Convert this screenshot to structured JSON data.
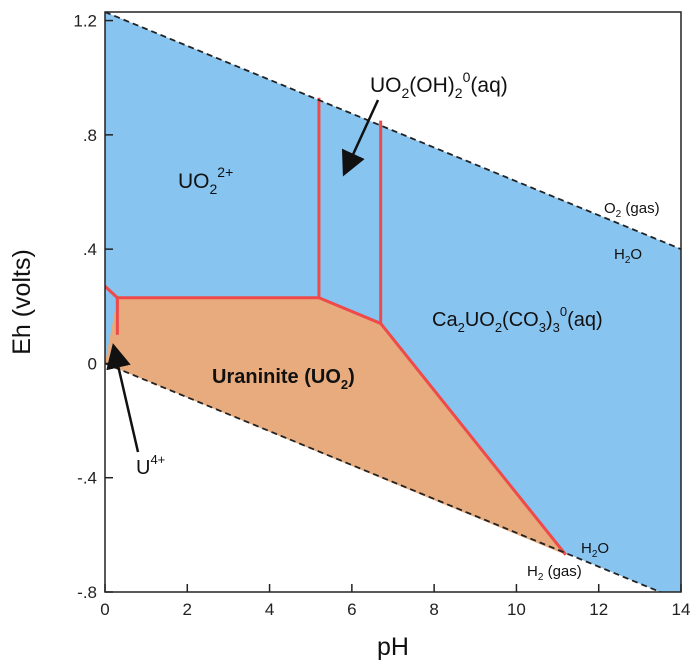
{
  "chart_data": {
    "type": "area",
    "title": "",
    "xlabel": "pH",
    "ylabel": "Eh (volts)",
    "xlim": [
      0,
      14
    ],
    "ylim": [
      -0.8,
      1.23
    ],
    "x_ticks": [
      "0",
      "2",
      "4",
      "6",
      "8",
      "10",
      "12",
      "14"
    ],
    "y_ticks": [
      {
        "value": 1.2,
        "label": "1.2"
      },
      {
        "value": 0.8,
        "label": ".8"
      },
      {
        "value": 0.4,
        "label": ".4"
      },
      {
        "value": 0,
        "label": "0"
      },
      {
        "value": -0.4,
        "label": "-.4"
      },
      {
        "value": -0.8,
        "label": "-.8"
      }
    ],
    "water_upper_line": {
      "x": [
        0,
        14
      ],
      "y": [
        1.23,
        0.4
      ]
    },
    "water_lower_line": {
      "x": [
        0,
        14
      ],
      "y": [
        0.0,
        -0.83
      ]
    },
    "boundaries": [
      {
        "x": [
          0,
          0.3
        ],
        "y": [
          0.27,
          0.23
        ]
      },
      {
        "x": [
          0.3,
          5.2
        ],
        "y": [
          0.23,
          0.23
        ]
      },
      {
        "x": [
          0.3,
          0.3
        ],
        "y": [
          0.23,
          0.1
        ]
      },
      {
        "x": [
          5.2,
          6.7
        ],
        "y": [
          0.23,
          0.14
        ]
      },
      {
        "x": [
          6.7,
          11.2
        ],
        "y": [
          0.14,
          -0.67
        ]
      },
      {
        "x": [
          5.2,
          5.2
        ],
        "y": [
          0.23,
          0.93
        ]
      },
      {
        "x": [
          6.7,
          6.7
        ],
        "y": [
          0.14,
          0.85
        ]
      }
    ],
    "uraninite_region": {
      "x": [
        0,
        0.3,
        5.2,
        6.7,
        11.2,
        0
      ],
      "y": [
        0.0,
        0.23,
        0.23,
        0.14,
        -0.67,
        0.0
      ]
    },
    "colors": {
      "aqueous_field": "#88c4f0",
      "solid_field": "#e8ab7e",
      "boundary": "#ef4a4a",
      "stability_lines": "#222222"
    }
  },
  "labels": {
    "uo2_2plus": {
      "main": "UO",
      "sub": "2",
      "sup": "2+"
    },
    "uo2oh2": {
      "a": "UO",
      "b": "2",
      "c": "(OH)",
      "d": "2",
      "e": "0",
      "f": "(aq)"
    },
    "ca2uo2co3": {
      "a": "Ca",
      "b": "2",
      "c": "UO",
      "d": "2",
      "e": "(CO",
      "f": "3",
      "g": ")",
      "h": "3",
      "i": "0",
      "j": "(aq)"
    },
    "uraninite": {
      "a": "Uraninite (UO",
      "b": "2",
      "c": ")"
    },
    "u4plus": {
      "main": "U",
      "sup": "4+"
    },
    "o2gas": {
      "a": "O",
      "b": "2",
      "c": " (gas)"
    },
    "h2o_upper": {
      "a": "H",
      "b": "2",
      "c": "O"
    },
    "h2o_lower": {
      "a": "H",
      "b": "2",
      "c": "O"
    },
    "h2gas": {
      "a": "H",
      "b": "2",
      "c": " (gas)"
    }
  }
}
